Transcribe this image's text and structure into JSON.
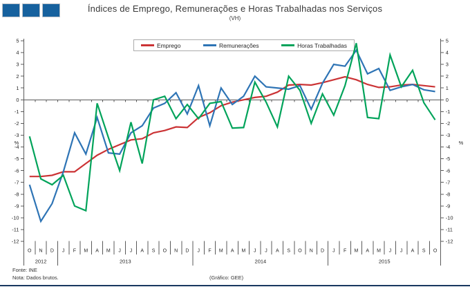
{
  "header": {
    "title": "Índices de Emprego, Remunerações e Horas Trabalhadas nos Serviços",
    "subtitle": "(VH)"
  },
  "logo": {
    "description": "three-blue-squares",
    "square_count": 3,
    "color": "#16619e"
  },
  "colors": {
    "emprego": "#cb3335",
    "remuneracoes": "#2e74b5",
    "horas_trabalhadas": "#00a35a",
    "axis": "#595959",
    "text": "#262626",
    "logo_blue": "#16619e",
    "bottom_rule": "#17375e",
    "legend_border": "#ababab"
  },
  "chart_data": {
    "type": "line",
    "title": "Índices de Emprego, Remunerações e Horas Trabalhadas nos Serviços",
    "subtitle": "(VH)",
    "ylabel_left": "%",
    "ylabel_right": "%",
    "ylim": [
      -12,
      5
    ],
    "y_tick_step": 1,
    "grid": "zero-line-only",
    "legend_position": "top-center-boxed",
    "x_labels_months": [
      "O",
      "N",
      "D",
      "J",
      "F",
      "M",
      "A",
      "M",
      "J",
      "J",
      "A",
      "S",
      "O",
      "N",
      "D",
      "J",
      "F",
      "M",
      "A",
      "M",
      "J",
      "J",
      "A",
      "S",
      "O",
      "N",
      "D",
      "J",
      "F",
      "M",
      "A",
      "M",
      "J",
      "J",
      "A",
      "S",
      "O"
    ],
    "year_groups": [
      {
        "label": "2012",
        "months": 3
      },
      {
        "label": "2013",
        "months": 12
      },
      {
        "label": "2014",
        "months": 12
      },
      {
        "label": "2015",
        "months": 10
      }
    ],
    "series": [
      {
        "name": "Emprego",
        "key": "emprego",
        "color": "#cb3335",
        "values": [
          -6.5,
          -6.5,
          -6.4,
          -6.1,
          -6.1,
          -5.4,
          -4.7,
          -4.2,
          -3.8,
          -3.4,
          -3.3,
          -2.8,
          -2.6,
          -2.3,
          -2.35,
          -1.5,
          -1.1,
          -0.5,
          -0.2,
          0,
          0.2,
          0.3,
          0.65,
          1.25,
          1.3,
          1.25,
          1.45,
          1.7,
          1.95,
          1.7,
          1.3,
          1.05,
          1.1,
          1.25,
          1.3,
          1.2,
          1.1
        ]
      },
      {
        "name": "Remunerações",
        "key": "remuneracoes",
        "color": "#2e74b5",
        "values": [
          -7.2,
          -10.3,
          -8.8,
          -6.1,
          -2.8,
          -4.6,
          -1.5,
          -4.5,
          -4.6,
          -2.8,
          -2.2,
          -0.7,
          -0.3,
          0.6,
          -1.2,
          1.2,
          -2.2,
          1,
          -0.4,
          0.3,
          2,
          1.1,
          1,
          0.9,
          1.2,
          -0.8,
          1.4,
          3,
          2.85,
          4.2,
          2.2,
          2.65,
          0.8,
          1.1,
          1.3,
          0.85,
          0.7
        ]
      },
      {
        "name": "Horas Trabalhadas",
        "key": "horas-trabalhadas",
        "color": "#00a35a",
        "values": [
          -3.1,
          -6.7,
          -7.2,
          -6.4,
          -9,
          -9.4,
          -0.3,
          -3.2,
          -6,
          -1.9,
          -5.4,
          0,
          0.3,
          -1.6,
          -0.4,
          -1.6,
          -0.3,
          -0.15,
          -2.4,
          -2.35,
          1.5,
          -0.2,
          -2.3,
          2,
          0.8,
          -2,
          0.5,
          -1.3,
          1.2,
          4.8,
          -1.5,
          -1.6,
          3.8,
          1.1,
          2.5,
          -0.25,
          -1.7
        ]
      }
    ]
  },
  "footer": {
    "source": "Fonte: INE",
    "note": "Nota: Dados brutos.",
    "credit": "(Gráfico: GEE)"
  }
}
